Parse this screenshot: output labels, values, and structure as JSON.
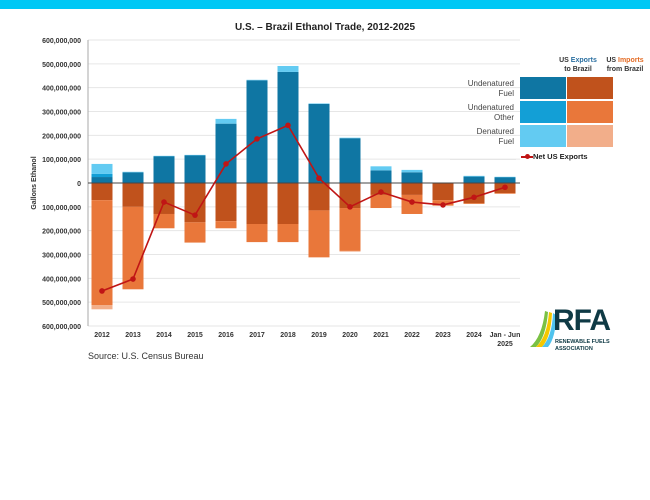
{
  "header": {
    "band_color": "#00c8f5"
  },
  "chart_data": {
    "type": "bar",
    "subtype": "stacked-diverging-bar-with-line",
    "title": "U.S. – Brazil Ethanol Trade, 2012-2025",
    "xlabel": "",
    "ylabel": "Gallons Ethanol",
    "ylim": [
      -600000000,
      600000000
    ],
    "yticks": [
      600000000,
      500000000,
      400000000,
      300000000,
      200000000,
      100000000,
      0,
      -100000000,
      -200000000,
      -300000000,
      -400000000,
      -500000000,
      -600000000
    ],
    "ytick_labels": [
      "600,000,000",
      "500,000,000",
      "400,000,000",
      "300,000,000",
      "200,000,000",
      "100,000,000",
      "0",
      "100,000,000",
      "200,000,000",
      "300,000,000",
      "400,000,000",
      "500,000,000",
      "600,000,000"
    ],
    "grid": true,
    "categories": [
      "2012",
      "2013",
      "2014",
      "2015",
      "2016",
      "2017",
      "2018",
      "2019",
      "2020",
      "2021",
      "2022",
      "2023",
      "2024",
      "Jan - Jun 2025"
    ],
    "category_lines": [
      [
        "2012"
      ],
      [
        "2013"
      ],
      [
        "2014"
      ],
      [
        "2015"
      ],
      [
        "2016"
      ],
      [
        "2017"
      ],
      [
        "2018"
      ],
      [
        "2019"
      ],
      [
        "2020"
      ],
      [
        "2021"
      ],
      [
        "2022"
      ],
      [
        "2023"
      ],
      [
        "2024"
      ],
      [
        "Jan - Jun",
        "2025"
      ]
    ],
    "series": [
      {
        "name": "US Exports to Brazil – Undenatured Fuel",
        "group": "exports",
        "color": "#0f76a3",
        "values": [
          25000000,
          45000000,
          113000000,
          117000000,
          249000000,
          431000000,
          466000000,
          332000000,
          188000000,
          53000000,
          45000000,
          2000000,
          27000000,
          25000000
        ]
      },
      {
        "name": "US Exports to Brazil – Undenatured Other",
        "group": "exports",
        "color": "#139fd6",
        "values": [
          13000000,
          0,
          0,
          0,
          0,
          0,
          0,
          0,
          0,
          0,
          0,
          0,
          0,
          0
        ]
      },
      {
        "name": "US Exports to Brazil – Denatured Fuel",
        "group": "exports",
        "color": "#63cbf2",
        "values": [
          42000000,
          2000000,
          1000000,
          1000000,
          20000000,
          2000000,
          25000000,
          2000000,
          2000000,
          17000000,
          10000000,
          0,
          3000000,
          1000000
        ]
      },
      {
        "name": "US Imports from Brazil – Undenatured Fuel",
        "group": "imports",
        "color": "#c0521c",
        "values": [
          -72000000,
          -100000000,
          -130000000,
          -165000000,
          -160000000,
          -172000000,
          -172000000,
          -115000000,
          -105000000,
          -50000000,
          -50000000,
          -72000000,
          -85000000,
          -42000000
        ]
      },
      {
        "name": "US Imports from Brazil – Undenatured Other",
        "group": "imports",
        "color": "#e9773a",
        "values": [
          -440000000,
          -345000000,
          -60000000,
          -85000000,
          -30000000,
          -76000000,
          -76000000,
          -197000000,
          -180000000,
          -55000000,
          -80000000,
          -23000000,
          -3000000,
          -3000000
        ]
      },
      {
        "name": "US Imports from Brazil – Denatured Fuel",
        "group": "imports",
        "color": "#f2ae8a",
        "values": [
          -18000000,
          -2000000,
          0,
          0,
          0,
          0,
          0,
          0,
          -3000000,
          0,
          0,
          0,
          0,
          0
        ]
      },
      {
        "name": "Net US Exports",
        "type": "line",
        "color": "#c01515",
        "values": [
          -453000000,
          -403000000,
          -80000000,
          -135000000,
          80000000,
          185000000,
          242000000,
          20000000,
          -100000000,
          -38000000,
          -80000000,
          -92000000,
          -60000000,
          -18000000
        ]
      }
    ],
    "legend": {
      "placement": "right",
      "col_headers": [
        {
          "prefix": "US ",
          "highlight": "Exports",
          "suffix": "to Brazil"
        },
        {
          "prefix": "US ",
          "highlight": "Imports",
          "suffix": "from Brazil"
        }
      ],
      "rows": [
        {
          "line1": "Undenatured",
          "line2": "Fuel",
          "export_color": "#0f76a3",
          "import_color": "#c0521c"
        },
        {
          "line1": "Undenatured",
          "line2": "Other",
          "export_color": "#139fd6",
          "import_color": "#e9773a"
        },
        {
          "line1": "Denatured",
          "line2": "Fuel",
          "export_color": "#63cbf2",
          "import_color": "#f2ae8a"
        }
      ],
      "line_label": "Net US Exports"
    },
    "source": "Source: U.S. Census Bureau"
  },
  "logo": {
    "text": "RFA",
    "sub_line1": "RENEWABLE FUELS",
    "sub_line2": "ASSOCIATION"
  }
}
